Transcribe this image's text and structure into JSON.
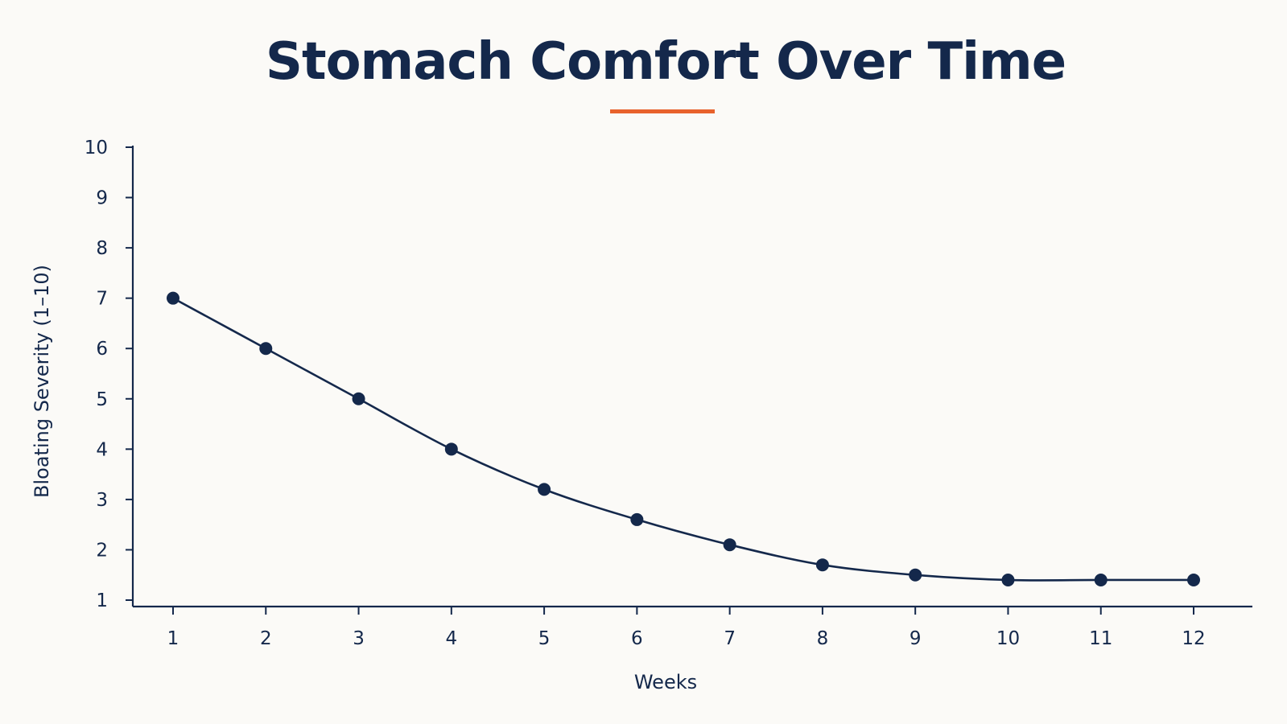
{
  "colors": {
    "background": "#fbfaf7",
    "ink": "#14284b",
    "accent": "#e8622c"
  },
  "chart_data": {
    "type": "line",
    "title": "Stomach Comfort Over Time",
    "xlabel": "Weeks",
    "ylabel": "Bloating Severity (1–10)",
    "x": [
      1,
      2,
      3,
      4,
      5,
      6,
      7,
      8,
      9,
      10,
      11,
      12
    ],
    "x_tick_labels": [
      "1",
      "2",
      "3",
      "4",
      "5",
      "6",
      "7",
      "8",
      "9",
      "10",
      "11",
      "12"
    ],
    "y_tick_labels": [
      "1",
      "2",
      "3",
      "4",
      "5",
      "6",
      "7",
      "8",
      "9",
      "10"
    ],
    "series": [
      {
        "values": [
          7,
          6,
          5,
          4,
          3.2,
          2.6,
          2.1,
          1.7,
          1.5,
          1.4,
          1.4,
          1.4
        ]
      }
    ],
    "ylim": [
      1,
      10
    ],
    "xlim": [
      1,
      12
    ],
    "grid": false,
    "legend": false
  }
}
